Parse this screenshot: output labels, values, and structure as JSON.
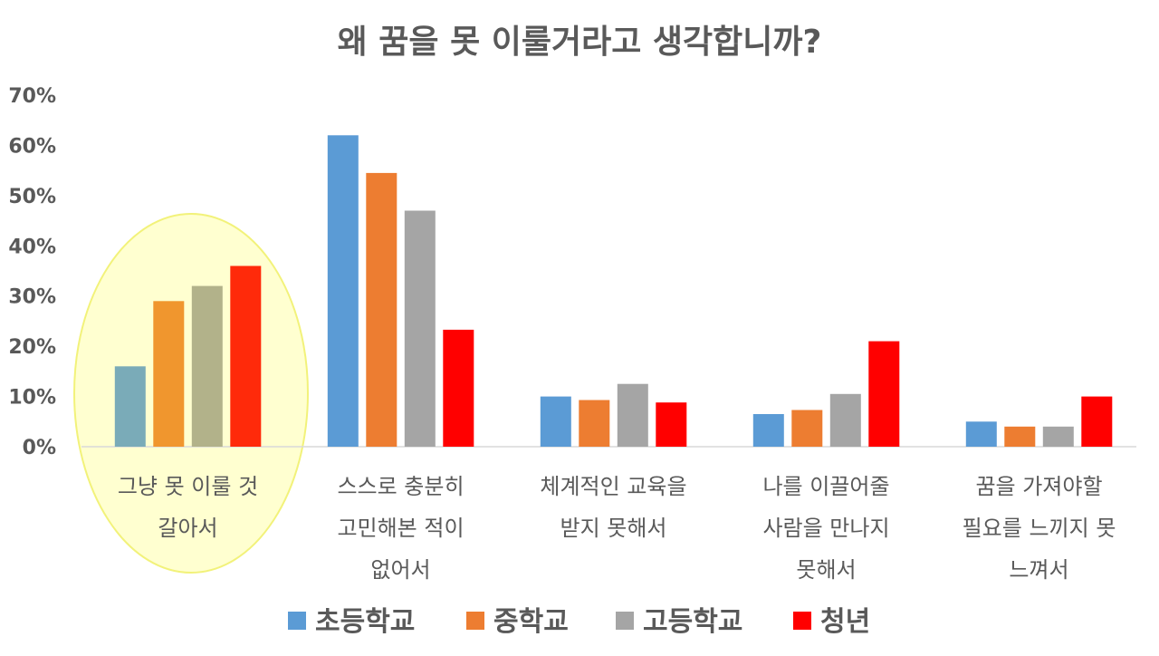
{
  "chart_data": {
    "type": "bar",
    "title": "왜 꿈을 못 이룰거라고 생각합니까?",
    "ylim": [
      0,
      70
    ],
    "yticks": [
      "0%",
      "10%",
      "20%",
      "30%",
      "40%",
      "50%",
      "60%",
      "70%"
    ],
    "categories": [
      [
        "그냥 못 이룰 것",
        "갈아서"
      ],
      [
        "스스로 충분히",
        "고민해본 적이",
        "없어서"
      ],
      [
        "체계적인 교육을",
        "받지 못해서"
      ],
      [
        "나를 이끌어줄",
        "사람을 만나지",
        "못해서"
      ],
      [
        "꿈을 가져야할",
        "필요를 느끼지 못",
        "느껴서"
      ]
    ],
    "series": [
      {
        "name": "초등학교",
        "color": "#5B9BD5",
        "values": [
          16,
          62,
          10,
          6.5,
          5
        ]
      },
      {
        "name": "중학교",
        "color": "#ED7D31",
        "values": [
          29,
          54.5,
          9.3,
          7.3,
          4
        ]
      },
      {
        "name": "고등학교",
        "color": "#A5A5A5",
        "values": [
          32,
          47,
          12.5,
          10.5,
          4
        ]
      },
      {
        "name": "청년",
        "color": "#FF0000",
        "values": [
          36,
          23.3,
          8.8,
          21,
          10
        ]
      }
    ],
    "highlight_category_index": 0,
    "highlight_colors": [
      "#7AABB8",
      "#F0962E",
      "#B2B28A",
      "#FF2A0A"
    ],
    "legend_position": "bottom",
    "grid": false
  }
}
